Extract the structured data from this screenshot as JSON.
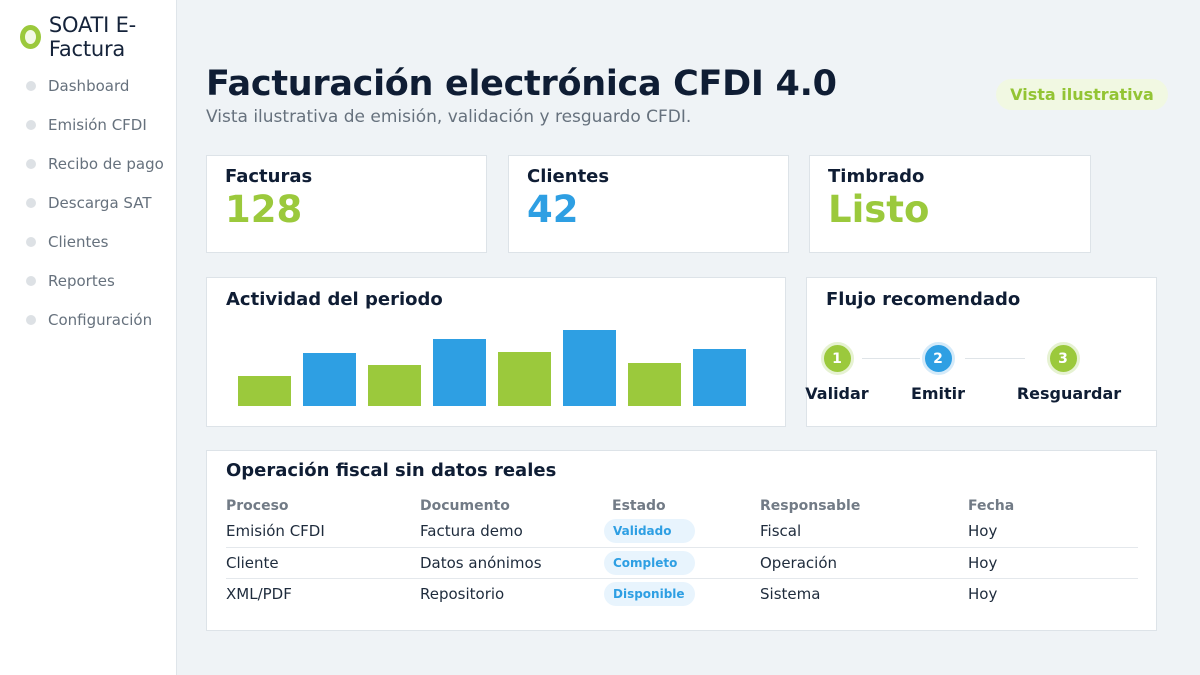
{
  "brand": {
    "name": "SOATI E-Factura"
  },
  "sidebar": {
    "items": [
      {
        "label": "Dashboard"
      },
      {
        "label": "Emisión CFDI"
      },
      {
        "label": "Recibo de pago"
      },
      {
        "label": "Descarga SAT"
      },
      {
        "label": "Clientes"
      },
      {
        "label": "Reportes"
      },
      {
        "label": "Configuración"
      }
    ]
  },
  "header": {
    "title": "Facturación electrónica CFDI 4.0",
    "subtitle": "Vista ilustrativa de emisión, validación y resguardo CFDI.",
    "badge": "Vista ilustrativa"
  },
  "stats": [
    {
      "label": "Facturas",
      "value": "128",
      "color": "#9bc93c"
    },
    {
      "label": "Clientes",
      "value": "42",
      "color": "#2e9fe3"
    },
    {
      "label": "Timbrado",
      "value": "Listo",
      "color": "#9bc93c"
    }
  ],
  "activity": {
    "title": "Actividad del periodo"
  },
  "chart_data": {
    "type": "bar",
    "title": "Actividad del periodo",
    "categories": [
      "",
      "",
      "",
      "",
      "",
      "",
      "",
      ""
    ],
    "values": [
      26,
      45,
      35,
      57,
      46,
      65,
      37,
      49
    ],
    "colors": [
      "#9bc93c",
      "#2e9fe3",
      "#9bc93c",
      "#2e9fe3",
      "#9bc93c",
      "#2e9fe3",
      "#9bc93c",
      "#2e9fe3"
    ],
    "ylim": [
      0,
      65
    ],
    "grid": false,
    "xlabel": "",
    "ylabel": ""
  },
  "flow": {
    "title": "Flujo recomendado",
    "steps": [
      {
        "number": "1",
        "label": "Validar",
        "color": "#9bc93c"
      },
      {
        "number": "2",
        "label": "Emitir",
        "color": "#2e9fe3"
      },
      {
        "number": "3",
        "label": "Resguardar",
        "color": "#9bc93c"
      }
    ]
  },
  "operations": {
    "title": "Operación fiscal sin datos reales",
    "headers": [
      "Proceso",
      "Documento",
      "Estado",
      "Responsable",
      "Fecha"
    ],
    "rows": [
      [
        "Emisión CFDI",
        "Factura demo",
        "Validado",
        "Fiscal",
        "Hoy"
      ],
      [
        "Cliente",
        "Datos anónimos",
        "Completo",
        "Operación",
        "Hoy"
      ],
      [
        "XML/PDF",
        "Repositorio",
        "Disponible",
        "Sistema",
        "Hoy"
      ]
    ]
  }
}
